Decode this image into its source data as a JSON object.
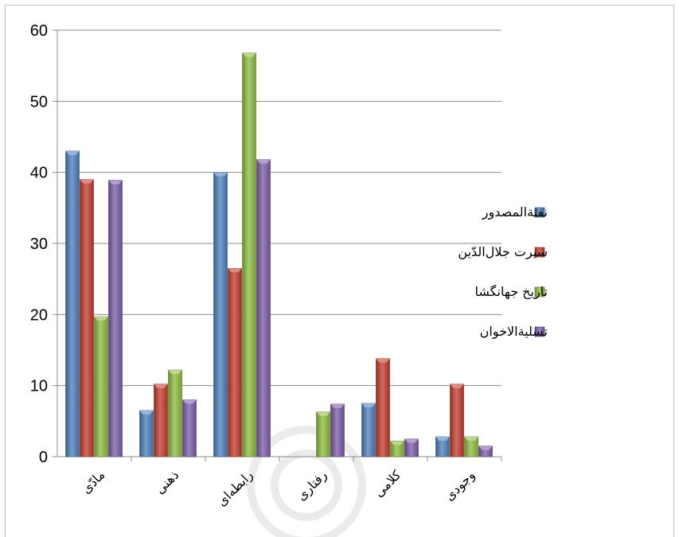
{
  "chart_data": {
    "type": "bar",
    "categories": [
      "مادّی",
      "ذهنی",
      "رابطه‌ای",
      "رفتاری",
      "کلامی",
      "وجودی"
    ],
    "series": [
      {
        "name": "نفثةالمصدور",
        "color": "#4a7ebb",
        "values": [
          43,
          6.5,
          40,
          0,
          7.5,
          2.8
        ]
      },
      {
        "name": "سیرت جلال‌الدّین",
        "color": "#c0392b",
        "values": [
          39,
          10.2,
          26.5,
          0,
          13.8,
          10.2
        ]
      },
      {
        "name": "تاریخ جهانگشا",
        "color": "#8cba3a",
        "values": [
          19.7,
          12.2,
          56.8,
          6.3,
          2.2,
          2.8
        ]
      },
      {
        "name": "تسلیةالاخوان",
        "color": "#7b5aa6",
        "values": [
          38.9,
          8,
          41.8,
          7.4,
          2.5,
          1.5
        ]
      }
    ],
    "yticks": [
      "0",
      "10",
      "20",
      "30",
      "40",
      "50",
      "60"
    ],
    "ylim": [
      0,
      60
    ],
    "grid": true,
    "legend": "right",
    "title": "",
    "xlabel": "",
    "ylabel": ""
  }
}
